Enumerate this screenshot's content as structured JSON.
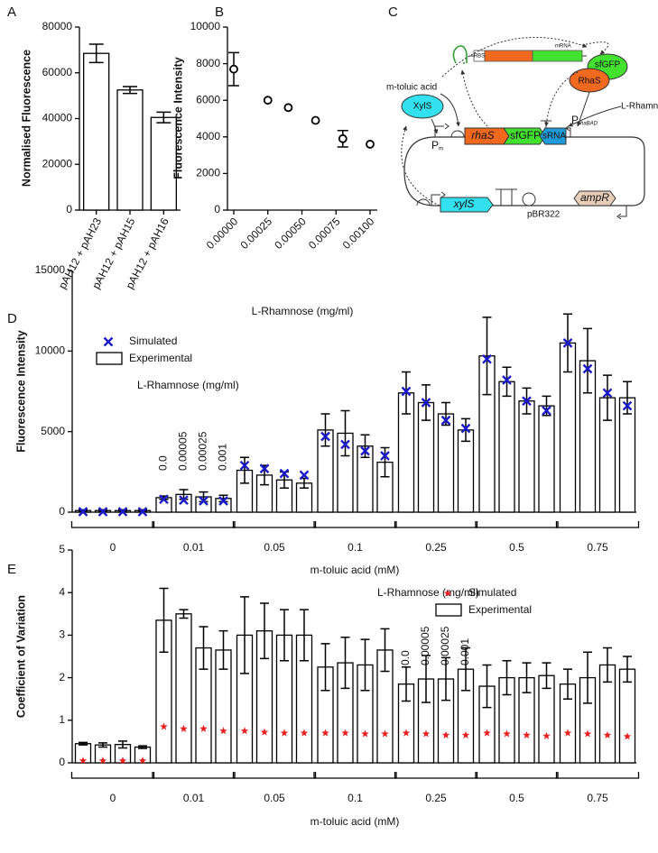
{
  "chart_data": [
    {
      "type": "bar",
      "label": "A",
      "ylabel": "Normalised Fluorescence",
      "categories": [
        "pAH12 + pAH23",
        "pAH12 + pAH15",
        "pAH12 + pAH16"
      ],
      "values": [
        68500,
        52500,
        40500
      ],
      "errors": [
        4000,
        1500,
        2300
      ],
      "color": "#ffffff",
      "ylim": [
        0,
        80000
      ],
      "yticks": [
        0,
        20000,
        40000,
        60000,
        80000
      ]
    },
    {
      "type": "scatter",
      "label": "B",
      "ylabel": "Fluorescence Intensity",
      "xlabel": "L-Rhamnose (mg/ml)",
      "x": [
        0,
        0.00025,
        0.0004,
        0.0006,
        0.0008,
        0.001
      ],
      "values": [
        7700,
        6000,
        5600,
        4900,
        3900,
        3600
      ],
      "errors": [
        900,
        0,
        0,
        0,
        450,
        0
      ],
      "xlim": [
        0,
        0.001
      ],
      "xticks": [
        {
          "value": 0,
          "label": "0.00000"
        },
        {
          "value": 0.00025,
          "label": "0.00025"
        },
        {
          "value": 0.0005,
          "label": "0.00050"
        },
        {
          "value": 0.00075,
          "label": "0.00075"
        },
        {
          "value": 0.001,
          "label": "0.00100"
        }
      ],
      "ylim": [
        0,
        10000
      ],
      "yticks": [
        0,
        2000,
        4000,
        6000,
        8000,
        10000
      ]
    },
    {
      "type": "grouped_bar",
      "label": "D",
      "ylabel": "Fluorescence Intensity",
      "xlabel": "m-toluic acid (mM)",
      "categories": [
        "0",
        "0.01",
        "0.05",
        "0.1",
        "0.25",
        "0.5",
        "0.75"
      ],
      "subgroups": {
        "title": "L-Rhamnose (mg/ml)",
        "labels": [
          "0.0",
          "0.00005",
          "0.00025",
          "0.001"
        ]
      },
      "legend": "upper left",
      "series": [
        {
          "name": "Simulated",
          "marker": "x",
          "color": "#1a1acc",
          "values": [
            [
              30,
              30,
              30,
              30
            ],
            [
              800,
              750,
              700,
              700
            ],
            [
              2900,
              2700,
              2400,
              2300
            ],
            [
              4700,
              4200,
              3800,
              3500
            ],
            [
              7500,
              6800,
              5700,
              5200
            ],
            [
              9500,
              8200,
              6900,
              6300
            ],
            [
              10500,
              8900,
              7400,
              6600
            ]
          ]
        },
        {
          "name": "Experimental",
          "color": "#ffffff",
          "values": [
            [
              100,
              100,
              100,
              100
            ],
            [
              900,
              1100,
              950,
              850
            ],
            [
              2600,
              2300,
              2000,
              1800
            ],
            [
              5100,
              4900,
              4100,
              3100
            ],
            [
              7400,
              6800,
              6100,
              5100
            ],
            [
              9700,
              8100,
              6900,
              6600
            ],
            [
              10500,
              9400,
              7100,
              7100
            ]
          ],
          "errors": [
            [
              50,
              50,
              50,
              50
            ],
            [
              100,
              300,
              300,
              200
            ],
            [
              800,
              600,
              500,
              300
            ],
            [
              1000,
              1400,
              700,
              900
            ],
            [
              1300,
              1100,
              700,
              700
            ],
            [
              2400,
              900,
              800,
              600
            ],
            [
              1800,
              2000,
              1400,
              1000
            ]
          ]
        }
      ],
      "ylim": [
        0,
        15000
      ],
      "yticks": [
        0,
        5000,
        10000,
        15000
      ]
    },
    {
      "type": "grouped_bar",
      "label": "E",
      "ylabel": "Coefficient of Variation",
      "xlabel": "m-toluic acid (mM)",
      "categories": [
        "0",
        "0.01",
        "0.05",
        "0.1",
        "0.25",
        "0.5",
        "0.75"
      ],
      "subgroups": {
        "title": "L-Rhamnose (mg/ml)",
        "labels": [
          "0.0",
          "0.00005",
          "0.00025",
          "0.001"
        ]
      },
      "legend": "upper right",
      "series": [
        {
          "name": "Simulated",
          "marker": "star",
          "color": "#e82020",
          "values": [
            [
              0.05,
              0.05,
              0.05,
              0.05
            ],
            [
              0.85,
              0.8,
              0.8,
              0.75
            ],
            [
              0.75,
              0.72,
              0.7,
              0.7
            ],
            [
              0.7,
              0.7,
              0.68,
              0.68
            ],
            [
              0.7,
              0.68,
              0.65,
              0.65
            ],
            [
              0.7,
              0.68,
              0.65,
              0.63
            ],
            [
              0.7,
              0.68,
              0.65,
              0.62
            ]
          ]
        },
        {
          "name": "Experimental",
          "color": "#ffffff",
          "values": [
            [
              0.45,
              0.42,
              0.43,
              0.37
            ],
            [
              3.35,
              3.5,
              2.7,
              2.65
            ],
            [
              3.0,
              3.1,
              3.0,
              3.0
            ],
            [
              2.25,
              2.35,
              2.3,
              2.65
            ],
            [
              1.85,
              1.97,
              1.97,
              2.2
            ],
            [
              1.8,
              2.0,
              2.0,
              2.05
            ],
            [
              1.85,
              2.0,
              2.3,
              2.2
            ]
          ],
          "errors": [
            [
              0.03,
              0.05,
              0.08,
              0.03
            ],
            [
              0.75,
              0.1,
              0.5,
              0.45
            ],
            [
              0.9,
              0.65,
              0.6,
              0.6
            ],
            [
              0.55,
              0.6,
              0.6,
              0.5
            ],
            [
              0.4,
              0.55,
              0.5,
              0.5
            ],
            [
              0.5,
              0.4,
              0.35,
              0.3
            ],
            [
              0.35,
              0.6,
              0.4,
              0.3
            ]
          ]
        }
      ],
      "ylim": [
        0,
        5
      ],
      "yticks": [
        0,
        1,
        2,
        3,
        4,
        5
      ]
    }
  ],
  "diagram": {
    "label": "C",
    "mrna": {
      "rbs": "RBS",
      "label": "mRNA"
    },
    "proteins": [
      "sfGFP",
      "RhaS",
      "XylS"
    ],
    "inducers": [
      "L-Rhamnose",
      "m-toluic acid"
    ],
    "genes": [
      "rhaS",
      "sfGFP",
      "sRNA",
      "xylS",
      "ampR"
    ],
    "promoters": [
      {
        "name": "P",
        "sub": "m"
      },
      {
        "name": "P",
        "sub": "rhaBAD"
      }
    ],
    "origin": "pBR322"
  }
}
